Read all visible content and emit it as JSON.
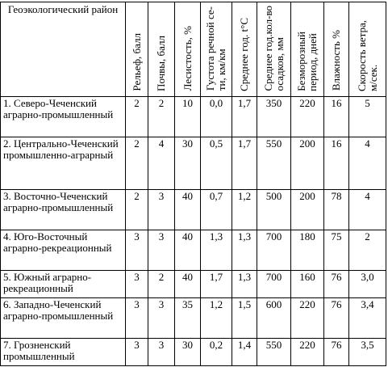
{
  "header": {
    "region": "Геоэкологический район",
    "columns": [
      "Рельеф, балл",
      "Почвы, балл",
      "Лесистость, %",
      "Густота речной се-\nти, км/км",
      "Среднее год. t°C",
      "Среднее год.кол-во\nосадков, мм",
      "Безморозный\nпериод, дней",
      "Влажность %",
      "Скорость ветра,\nм/сек."
    ]
  },
  "rows": [
    {
      "name": "1. Северо-Чеченский аграрно-промышленный",
      "values": [
        "2",
        "2",
        "10",
        "0,0",
        "1,7",
        "350",
        "220",
        "16",
        "5"
      ]
    },
    {
      "name": "2. Центрально-Чеченский промышленно-аграрный",
      "values": [
        "2",
        "4",
        "30",
        "0,5",
        "1,7",
        "550",
        "200",
        "16",
        "4"
      ]
    },
    {
      "name": "3. Восточно-Чеченский аграрно-промышленный",
      "values": [
        "2",
        "3",
        "40",
        "0,7",
        "1,2",
        "500",
        "200",
        "78",
        "4"
      ]
    },
    {
      "name": "4. Юго-Восточный аграрно-рекреационный",
      "values": [
        "3",
        "3",
        "40",
        "1,3",
        "1,3",
        "700",
        "180",
        "75",
        "2"
      ]
    },
    {
      "name": "5. Южный аграрно-рекреационный",
      "values": [
        "3",
        "2",
        "40",
        "1,7",
        "1,3",
        "700",
        "160",
        "76",
        "3,0"
      ]
    },
    {
      "name": "6. Западно-Чеченский аграрно-промышленный",
      "values": [
        "3",
        "3",
        "35",
        "1,2",
        "1,5",
        "600",
        "220",
        "76",
        "3,4"
      ]
    },
    {
      "name": "7. Грозненский промышленный",
      "values": [
        "3",
        "3",
        "30",
        "0,2",
        "1,4",
        "550",
        "220",
        "76",
        "3,5"
      ]
    }
  ]
}
